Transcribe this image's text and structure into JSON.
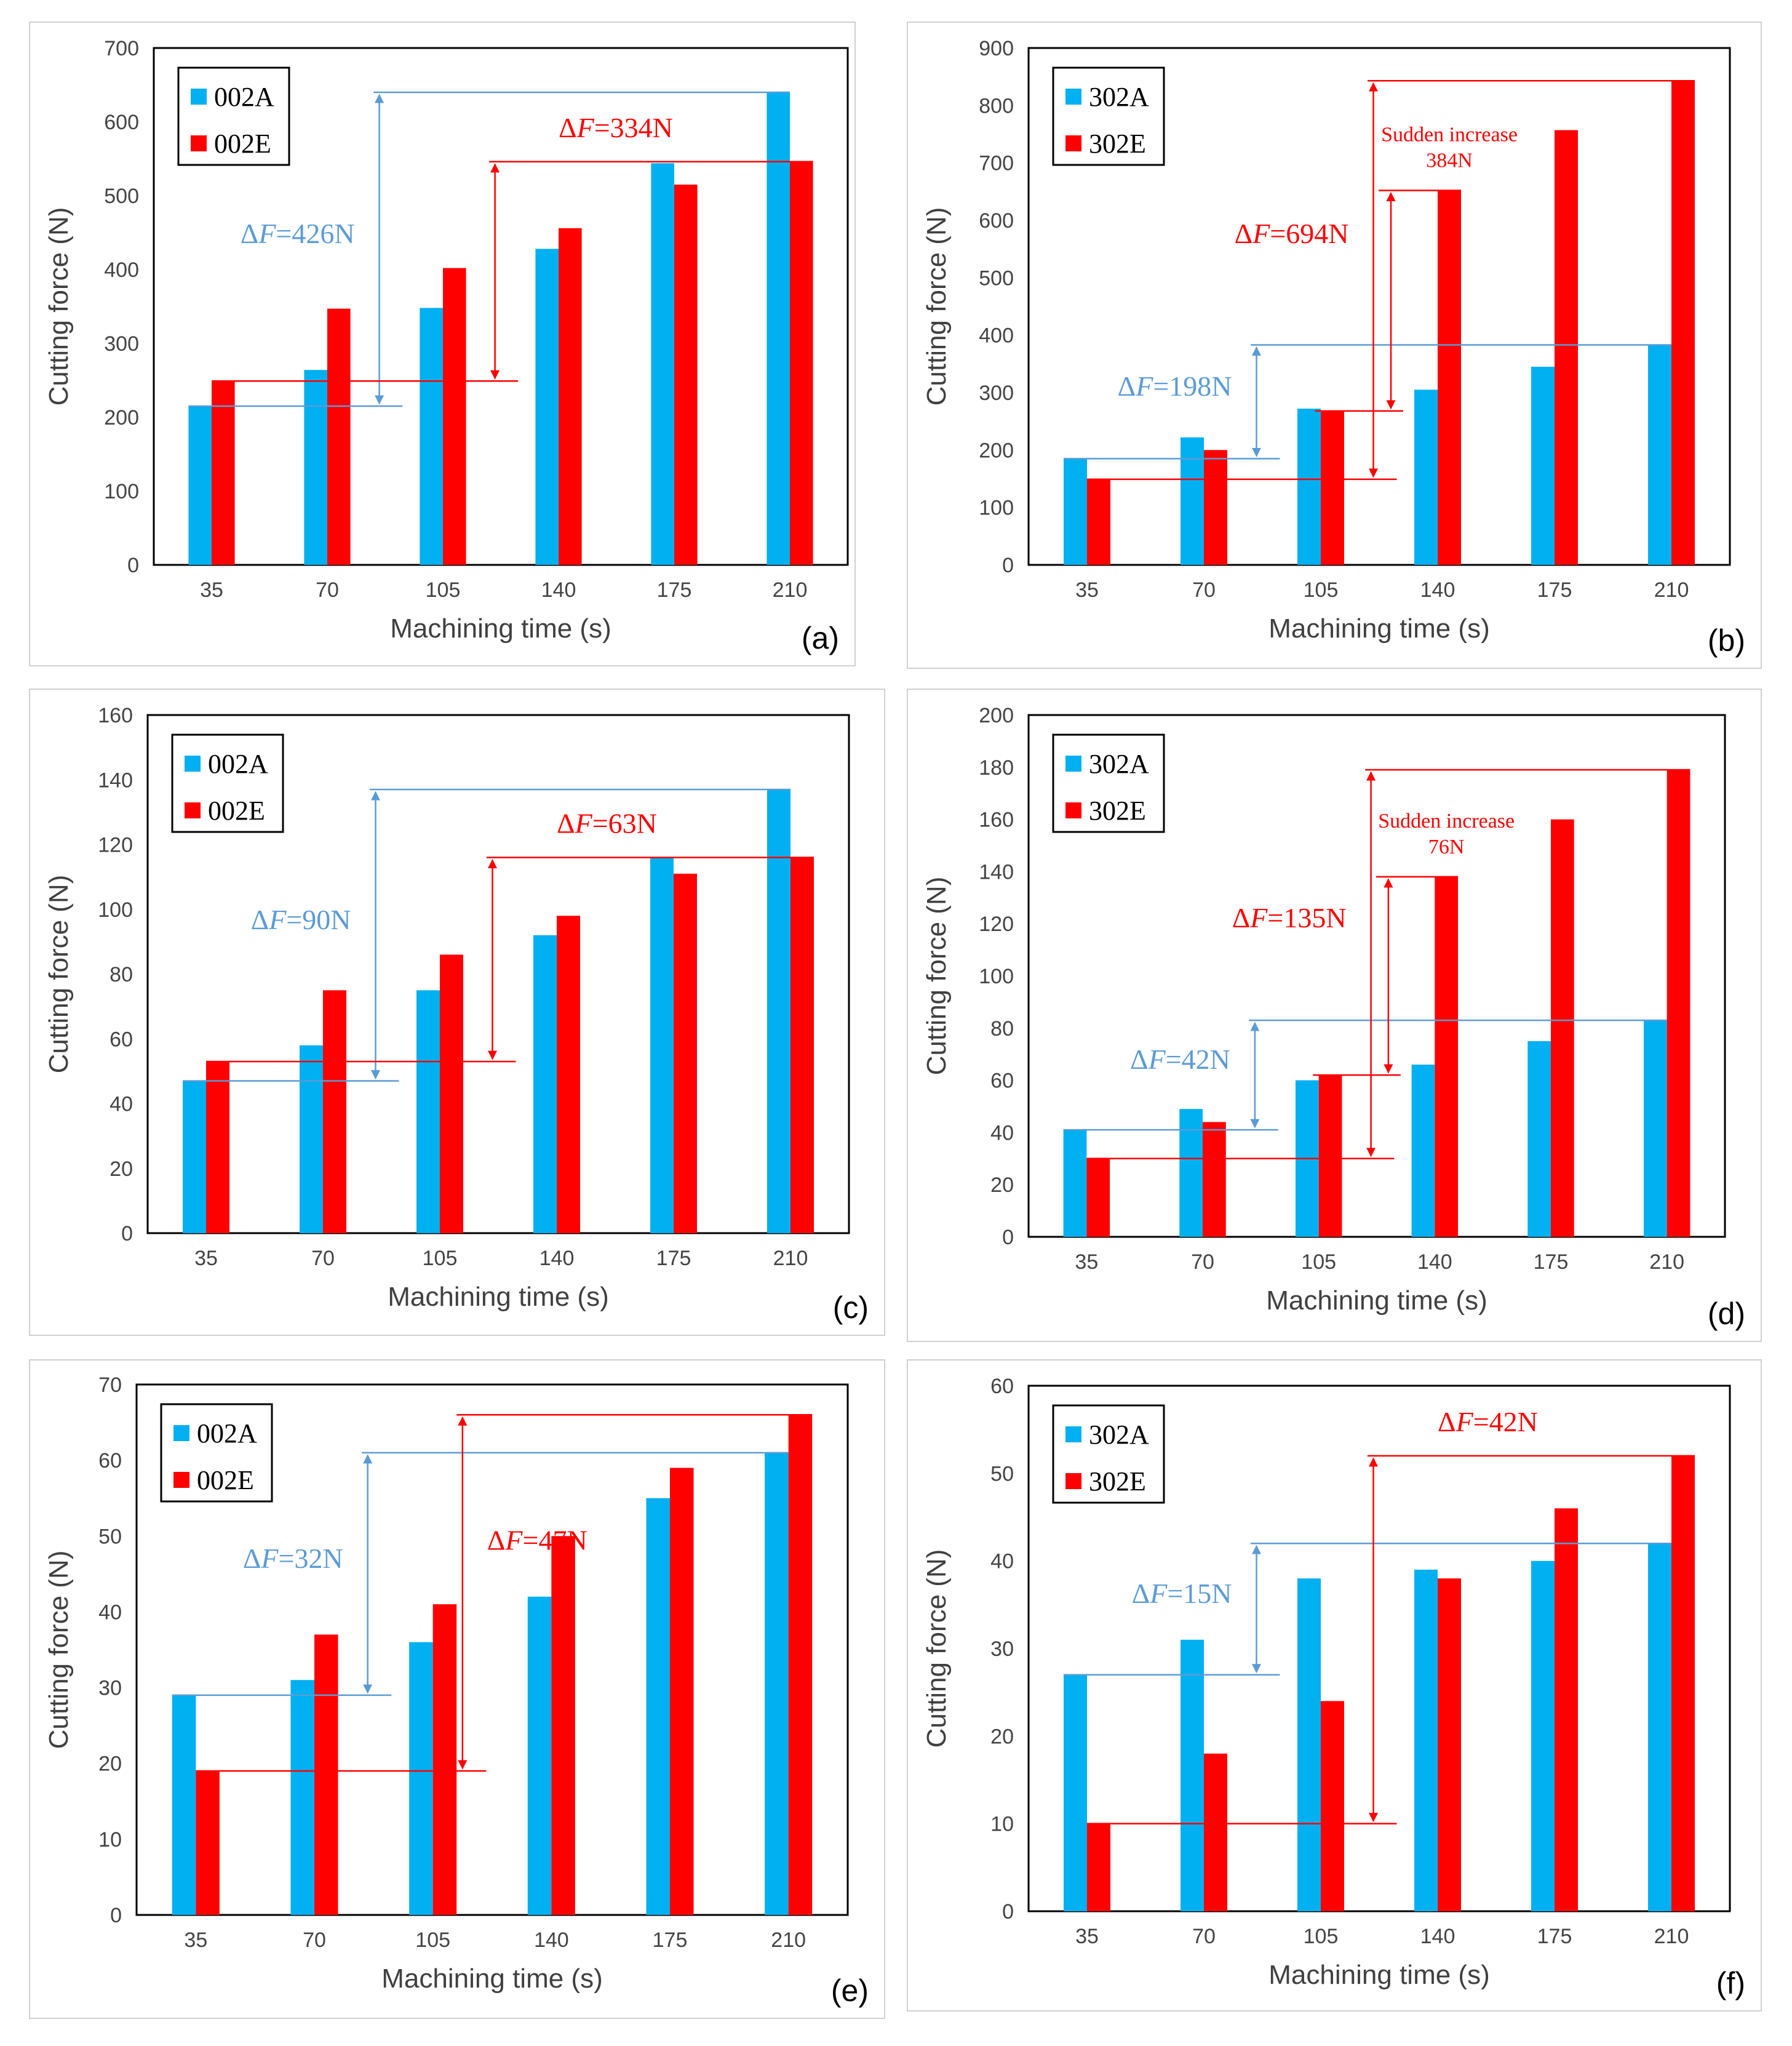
{
  "colors": {
    "seriesA": "#00B0F0",
    "seriesE": "#FF0000",
    "arrowA": "#5B9BD5",
    "arrowE": "#FF0000"
  },
  "chart_data": [
    {
      "panel": "(a)",
      "type": "bar",
      "xlabel": "Machining time (s)",
      "ylabel": "Cutting force (N)",
      "categories": [
        "35",
        "70",
        "105",
        "140",
        "175",
        "210"
      ],
      "ylim": [
        0,
        700
      ],
      "yticks": [
        "0",
        "100",
        "200",
        "300",
        "400",
        "500",
        "600",
        "700"
      ],
      "series": [
        {
          "name": "002A",
          "values": [
            215,
            264,
            348,
            428,
            544,
            640
          ]
        },
        {
          "name": "002E",
          "values": [
            249,
            347,
            402,
            456,
            515,
            546
          ]
        }
      ],
      "annotations": [
        {
          "text": "ΔF=426N",
          "series": 0,
          "from": 215,
          "to": 640,
          "pos": "left",
          "color": "arrowA"
        },
        {
          "text": "ΔF=334N",
          "series": 1,
          "from": 249,
          "to": 546,
          "pos": "top",
          "color": "arrowE"
        }
      ]
    },
    {
      "panel": "(b)",
      "type": "bar",
      "xlabel": "Machining time (s)",
      "ylabel": "Cutting force (N)",
      "categories": [
        "35",
        "70",
        "105",
        "140",
        "175",
        "210"
      ],
      "ylim": [
        0,
        900
      ],
      "yticks": [
        "0",
        "100",
        "200",
        "300",
        "400",
        "500",
        "600",
        "700",
        "800",
        "900"
      ],
      "series": [
        {
          "name": "302A",
          "values": [
            185,
            222,
            272,
            305,
            345,
            383
          ]
        },
        {
          "name": "302E",
          "values": [
            149,
            200,
            268,
            652,
            757,
            843
          ]
        }
      ],
      "annotations": [
        {
          "text": "ΔF=198N",
          "series": 0,
          "from": 185,
          "to": 383,
          "pos": "left",
          "color": "arrowA"
        },
        {
          "text": "ΔF=694N",
          "series": 1,
          "from": 149,
          "to": 843,
          "pos": "left",
          "color": "arrowE"
        },
        {
          "text1": "Sudden increase",
          "text2": "384N",
          "from": 268,
          "to": 652,
          "color": "arrowE"
        }
      ]
    },
    {
      "panel": "(c)",
      "type": "bar",
      "xlabel": "Machining time (s)",
      "ylabel": "Cutting force (N)",
      "categories": [
        "35",
        "70",
        "105",
        "140",
        "175",
        "210"
      ],
      "ylim": [
        0,
        160
      ],
      "yticks": [
        "0",
        "20",
        "40",
        "60",
        "80",
        "100",
        "120",
        "140",
        "160"
      ],
      "series": [
        {
          "name": "002A",
          "values": [
            47,
            58,
            75,
            92,
            116,
            137
          ]
        },
        {
          "name": "002E",
          "values": [
            53,
            75,
            86,
            98,
            111,
            116
          ]
        }
      ],
      "annotations": [
        {
          "text": "ΔF=90N",
          "series": 0,
          "from": 47,
          "to": 137,
          "pos": "left",
          "color": "arrowA"
        },
        {
          "text": "ΔF=63N",
          "series": 1,
          "from": 53,
          "to": 116,
          "pos": "top",
          "color": "arrowE"
        }
      ]
    },
    {
      "panel": "(d)",
      "type": "bar",
      "xlabel": "Machining time (s)",
      "ylabel": "Cutting force (N)",
      "categories": [
        "35",
        "70",
        "105",
        "140",
        "175",
        "210"
      ],
      "ylim": [
        0,
        200
      ],
      "yticks": [
        "0",
        "20",
        "40",
        "60",
        "80",
        "100",
        "120",
        "140",
        "160",
        "180",
        "200"
      ],
      "series": [
        {
          "name": "302A",
          "values": [
            41,
            49,
            60,
            66,
            75,
            83
          ]
        },
        {
          "name": "302E",
          "values": [
            30,
            44,
            62,
            138,
            160,
            179
          ]
        }
      ],
      "annotations": [
        {
          "text": "ΔF=42N",
          "series": 0,
          "from": 41,
          "to": 83,
          "pos": "left",
          "color": "arrowA"
        },
        {
          "text": "ΔF=135N",
          "series": 1,
          "from": 30,
          "to": 179,
          "pos": "left",
          "color": "arrowE"
        },
        {
          "text1": "Sudden increase",
          "text2": "76N",
          "from": 62,
          "to": 138,
          "color": "arrowE"
        }
      ]
    },
    {
      "panel": "(e)",
      "type": "bar",
      "xlabel": "Machining time (s)",
      "ylabel": "Cutting force (N)",
      "categories": [
        "35",
        "70",
        "105",
        "140",
        "175",
        "210"
      ],
      "ylim": [
        0,
        70
      ],
      "yticks": [
        "0",
        "10",
        "20",
        "30",
        "40",
        "50",
        "60",
        "70"
      ],
      "series": [
        {
          "name": "002A",
          "values": [
            29,
            31,
            36,
            42,
            55,
            61
          ]
        },
        {
          "name": "002E",
          "values": [
            19,
            37,
            41,
            50,
            59,
            66
          ]
        }
      ],
      "annotations": [
        {
          "text": "ΔF=32N",
          "series": 0,
          "from": 29,
          "to": 61,
          "pos": "left",
          "color": "arrowA"
        },
        {
          "text": "ΔF=47N",
          "series": 1,
          "from": 19,
          "to": 66,
          "pos": "right",
          "color": "arrowE"
        }
      ]
    },
    {
      "panel": "(f)",
      "type": "bar",
      "xlabel": "Machining time (s)",
      "ylabel": "Cutting force (N)",
      "categories": [
        "35",
        "70",
        "105",
        "140",
        "175",
        "210"
      ],
      "ylim": [
        0,
        60
      ],
      "yticks": [
        "0",
        "10",
        "20",
        "30",
        "40",
        "50",
        "60"
      ],
      "series": [
        {
          "name": "302A",
          "values": [
            27,
            31,
            38,
            39,
            40,
            42
          ]
        },
        {
          "name": "302E",
          "values": [
            10,
            18,
            24,
            38,
            46,
            52
          ]
        }
      ],
      "annotations": [
        {
          "text": "ΔF=15N",
          "series": 0,
          "from": 27,
          "to": 42,
          "pos": "left",
          "color": "arrowA"
        },
        {
          "text": "ΔF=42N",
          "series": 1,
          "from": 10,
          "to": 52,
          "pos": "top",
          "color": "arrowE"
        }
      ]
    }
  ]
}
